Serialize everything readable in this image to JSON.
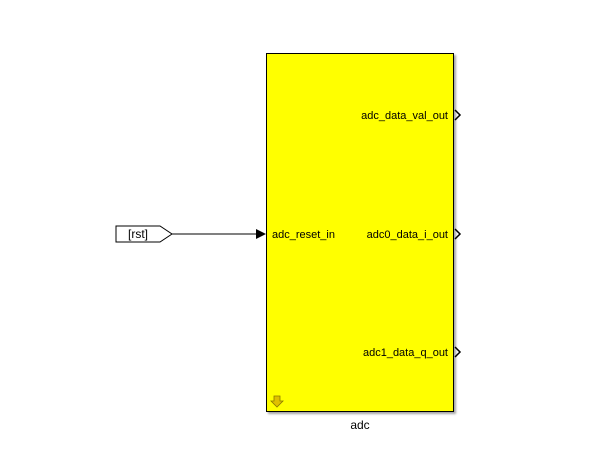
{
  "block": {
    "name": "adc",
    "color": "#ffff00",
    "inputs": [
      "adc_reset_in"
    ],
    "outputs": [
      "adc_data_val_out",
      "adc0_data_i_out",
      "adc1_data_q_out"
    ]
  },
  "from_tag": {
    "label": "[rst]"
  },
  "icons": {
    "block_corner": "down-arrow-icon",
    "port": "triangle-arrow-icon"
  }
}
